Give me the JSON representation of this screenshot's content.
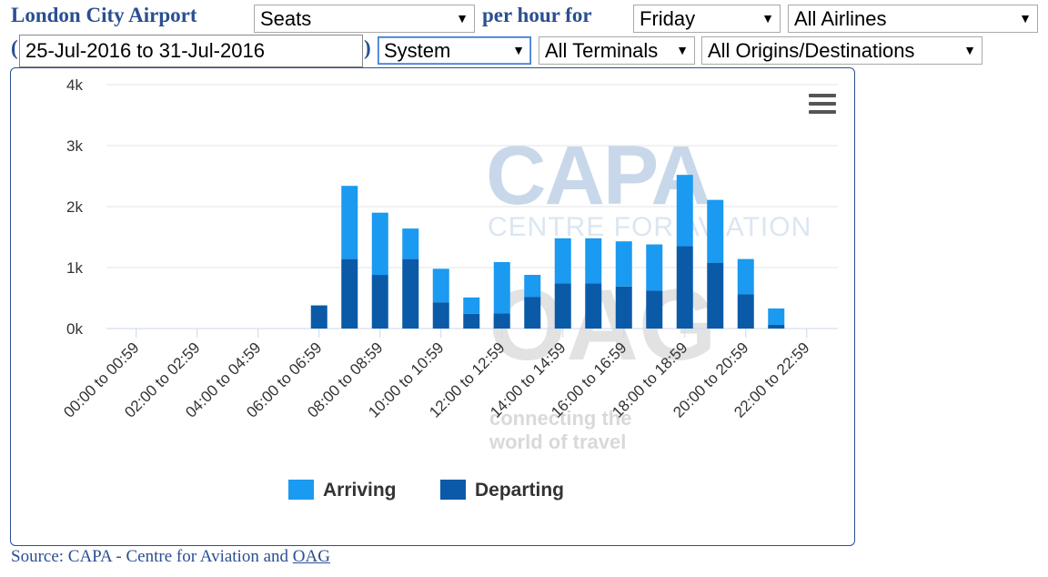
{
  "header": {
    "airport": "London City Airport",
    "metric_select": "Seats",
    "per_hour_for": "per hour for",
    "day_select": "Friday",
    "airline_select": "All Airlines",
    "open_paren": "(",
    "date_range": "25-Jul-2016 to 31-Jul-2016",
    "close_paren": ")",
    "system_select": "System",
    "terminal_select": "All Terminals",
    "origin_select": "All Origins/Destinations",
    "arrow_glyph": "▼"
  },
  "watermarks": {
    "capa": "CAPA",
    "capa_sub": "CENTRE FOR AVIATION",
    "oag": "OAG",
    "oag_sub_1": "connecting the",
    "oag_sub_2": "world of travel"
  },
  "chart_data": {
    "type": "bar",
    "stacked": true,
    "categories": [
      "00:00 to 00:59",
      "01:00 to 01:59",
      "02:00 to 02:59",
      "03:00 to 03:59",
      "04:00 to 04:59",
      "05:00 to 05:59",
      "06:00 to 06:59",
      "07:00 to 07:59",
      "08:00 to 08:59",
      "09:00 to 09:59",
      "10:00 to 10:59",
      "11:00 to 11:59",
      "12:00 to 12:59",
      "13:00 to 13:59",
      "14:00 to 14:59",
      "15:00 to 15:59",
      "16:00 to 16:59",
      "17:00 to 17:59",
      "18:00 to 18:59",
      "19:00 to 19:59",
      "20:00 to 20:59",
      "21:00 to 21:59",
      "22:00 to 22:59",
      "23:00 to 23:59"
    ],
    "visible_tick_labels": [
      "00:00 to 00:59",
      "02:00 to 02:59",
      "04:00 to 04:59",
      "06:00 to 06:59",
      "08:00 to 08:59",
      "10:00 to 10:59",
      "12:00 to 12:59",
      "14:00 to 14:59",
      "16:00 to 16:59",
      "18:00 to 18:59",
      "20:00 to 20:59",
      "22:00 to 22:59"
    ],
    "series": [
      {
        "name": "Departing",
        "color": "#0a5aa8",
        "values": [
          0,
          0,
          0,
          0,
          0,
          0,
          380,
          1140,
          880,
          1140,
          430,
          240,
          250,
          520,
          740,
          740,
          690,
          620,
          1350,
          1080,
          560,
          60,
          0,
          0
        ]
      },
      {
        "name": "Arriving",
        "color": "#1a9af0",
        "values": [
          0,
          0,
          0,
          0,
          0,
          0,
          0,
          1200,
          1020,
          500,
          550,
          270,
          840,
          360,
          740,
          740,
          740,
          760,
          1170,
          1030,
          580,
          270,
          0,
          0
        ]
      }
    ],
    "ylim": [
      0,
      4000
    ],
    "yticks": [
      0,
      1000,
      2000,
      3000,
      4000
    ],
    "ytick_labels": [
      "0k",
      "1k",
      "2k",
      "3k",
      "4k"
    ],
    "grid": true,
    "legend": [
      {
        "name": "Arriving",
        "color": "#1a9af0"
      },
      {
        "name": "Departing",
        "color": "#0a5aa8"
      }
    ],
    "legend_position": "bottom"
  },
  "footer": {
    "source_prefix": "Source: CAPA - Centre for Aviation and ",
    "source_link": "OAG"
  }
}
